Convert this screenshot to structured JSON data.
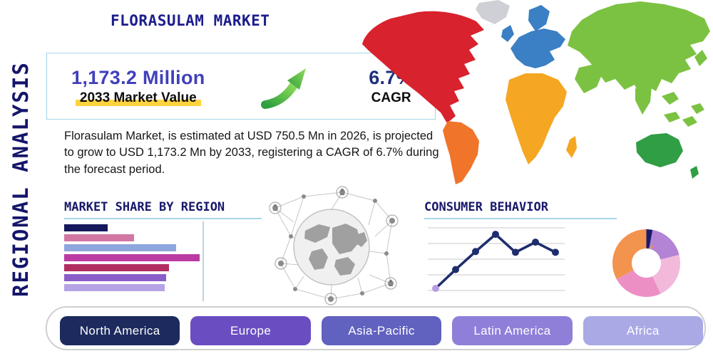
{
  "page": {
    "title": "FLORASULAM MARKET",
    "vertical_label": "REGIONAL ANALYSIS"
  },
  "stats": {
    "market_value": "1,173.2 Million",
    "market_value_label": "2033 Market Value",
    "cagr_value": "6.7%",
    "cagr_label": "CAGR",
    "description": "Florasulam Market, is estimated at USD 750.5 Mn in 2026, is projected to grow to USD 1,173.2 Mn by 2033, registering a CAGR of 6.7% during the forecast period.",
    "growth_arrow_colors": [
      "#2e9e3f",
      "#8fdc5a"
    ]
  },
  "sections": {
    "market_share_heading": "MARKET SHARE BY REGION",
    "consumer_behavior_heading": "CONSUMER BEHAVIOR"
  },
  "chart_data": [
    {
      "type": "bar",
      "title": "MARKET SHARE BY REGION",
      "orientation": "horizontal",
      "values": [
        31,
        50,
        80,
        97,
        75,
        73,
        72
      ],
      "unit": "relative-width-percent",
      "colors": [
        "#17175c",
        "#d277a3",
        "#8ea6de",
        "#bb3ba3",
        "#b12d62",
        "#8a5ec9",
        "#b6a3e6"
      ],
      "axis_labels_visible": false,
      "grid": "single-vertical-line"
    },
    {
      "type": "line",
      "title": "CONSUMER BEHAVIOR",
      "x": [
        1,
        2,
        3,
        4,
        5,
        6,
        7
      ],
      "y": [
        10,
        34,
        57,
        79,
        56,
        69,
        56
      ],
      "unit": "relative-height-percent",
      "line_color": "#1e2d6e",
      "first_marker_color": "#b49de0",
      "grid": true,
      "gridline_count": 5,
      "axis_labels_visible": false
    },
    {
      "type": "pie",
      "variant": "donut",
      "start": "top-clockwise",
      "segments": [
        {
          "label": "navy",
          "value": 3,
          "color": "#1b1b6b"
        },
        {
          "label": "plum",
          "value": 18,
          "color": "#b383d6"
        },
        {
          "label": "light-pink",
          "value": 22,
          "color": "#f3b9da"
        },
        {
          "label": "pink",
          "value": 24,
          "color": "#ec8fc5"
        },
        {
          "label": "orange",
          "value": 33,
          "color": "#f2944e"
        }
      ],
      "labels_visible": false
    }
  ],
  "map": {
    "colors": {
      "north-america": "#d8222e",
      "greenland": "#cfd0d6",
      "south-america": "#f0742a",
      "europe": "#3b7fc4",
      "africa": "#f5a623",
      "asia": "#7cc242",
      "southeast-asia": "#7cc242",
      "japan": "#7cc242",
      "australia": "#2f9e44",
      "new-zealand": "#2f9e44"
    }
  },
  "regions": [
    {
      "label": "North America",
      "color": "#1c2a5e"
    },
    {
      "label": "Europe",
      "color": "#6a4ec1"
    },
    {
      "label": "Asia-Pacific",
      "color": "#6161c0"
    },
    {
      "label": "Latin America",
      "color": "#8f7fd9"
    },
    {
      "label": "Africa",
      "color": "#a9a9e6"
    }
  ],
  "theme": {
    "accent_line": "#a9d6ea",
    "highlight": "#ffd33d",
    "navy": "#15156b"
  }
}
